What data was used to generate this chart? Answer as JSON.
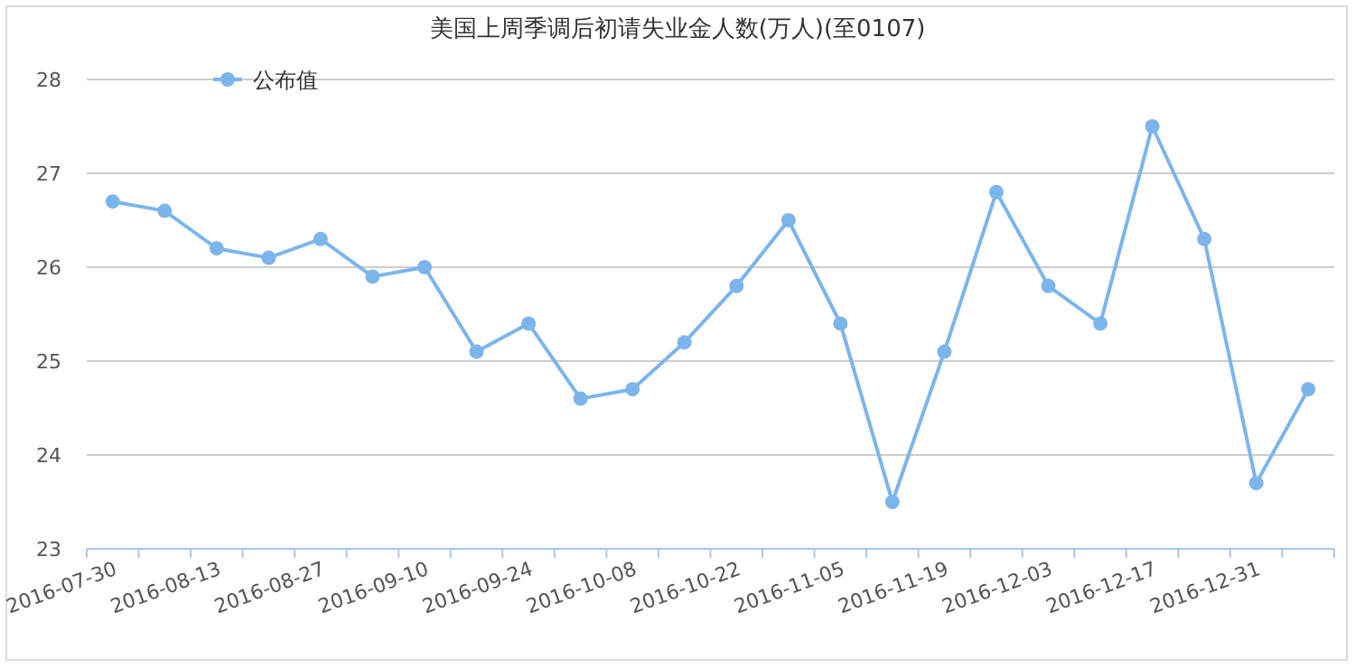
{
  "chart_data": {
    "type": "line",
    "title": "美国上周季调后初请失业金人数(万人)(至0107)",
    "categories": [
      "2016-07-30",
      null,
      "2016-08-13",
      null,
      "2016-08-27",
      null,
      "2016-09-10",
      null,
      "2016-09-24",
      null,
      "2016-10-08",
      null,
      "2016-10-22",
      null,
      "2016-11-05",
      null,
      "2016-11-19",
      null,
      "2016-12-03",
      null,
      "2016-12-17",
      null,
      "2016-12-31",
      null
    ],
    "series": [
      {
        "name": "公布值",
        "color": "#7cb5ec",
        "values": [
          26.7,
          26.6,
          26.2,
          26.1,
          26.3,
          25.9,
          26.0,
          25.1,
          25.4,
          24.6,
          24.7,
          25.2,
          25.8,
          26.5,
          25.4,
          23.5,
          25.1,
          26.8,
          25.8,
          25.4,
          27.5,
          26.3,
          23.7,
          24.7
        ]
      }
    ],
    "ylim": [
      23,
      28
    ],
    "yticks": [
      23,
      24,
      25,
      26,
      27,
      28
    ],
    "grid": "y",
    "legend": "top left",
    "marker": "circle",
    "line_style": "solid"
  }
}
